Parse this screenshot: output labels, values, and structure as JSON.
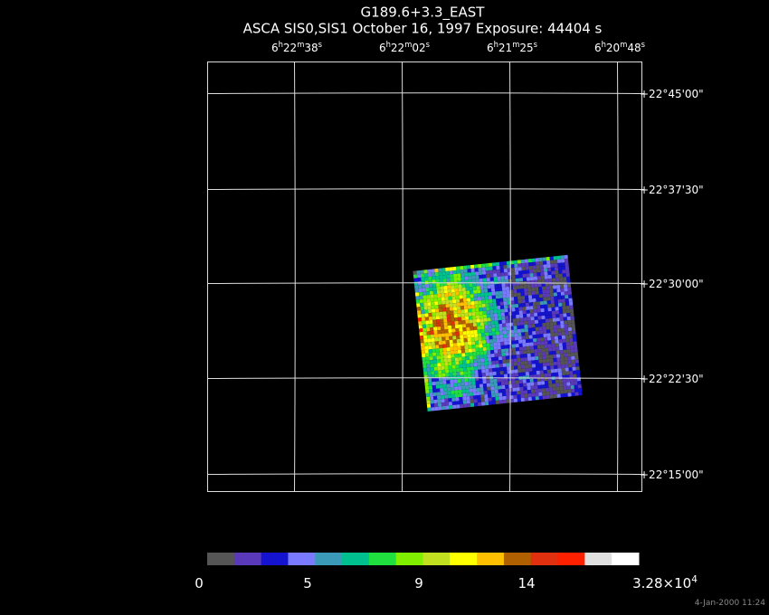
{
  "title": "G189.6+3.3_EAST",
  "subtitle": "ASCA SIS0,SIS1 October 16, 1997 Exposure: 44404 s",
  "ra_labels": [
    {
      "parts": [
        "6",
        "h",
        "22",
        "m",
        "38",
        "s"
      ]
    },
    {
      "parts": [
        "6",
        "h",
        "22",
        "m",
        "02",
        "s"
      ]
    },
    {
      "parts": [
        "6",
        "h",
        "21",
        "m",
        "25",
        "s"
      ]
    },
    {
      "parts": [
        "6",
        "h",
        "20",
        "m",
        "48",
        "s"
      ]
    }
  ],
  "dec_labels": [
    "+22°45'00\"",
    "+22°37'30\"",
    "+22°30'00\"",
    "+22°22'30\"",
    "+22°15'00\""
  ],
  "colorbar": {
    "colors": [
      "#555555",
      "#5a3aba",
      "#1414d0",
      "#7a7aff",
      "#3a9ab8",
      "#00c090",
      "#20e040",
      "#80f000",
      "#c0e020",
      "#ffff00",
      "#ffc000",
      "#b06000",
      "#e03010",
      "#ff2000",
      "#e0e0e0",
      "#ffffff"
    ],
    "labels": [
      {
        "parts": [
          "0"
        ]
      },
      {
        "parts": [
          "5"
        ]
      },
      {
        "parts": [
          "9"
        ]
      },
      {
        "parts": [
          "14"
        ]
      },
      {
        "parts": [
          "3.28×10",
          "4"
        ]
      }
    ]
  },
  "timestamp": "4-Jan-2000 11:24"
}
